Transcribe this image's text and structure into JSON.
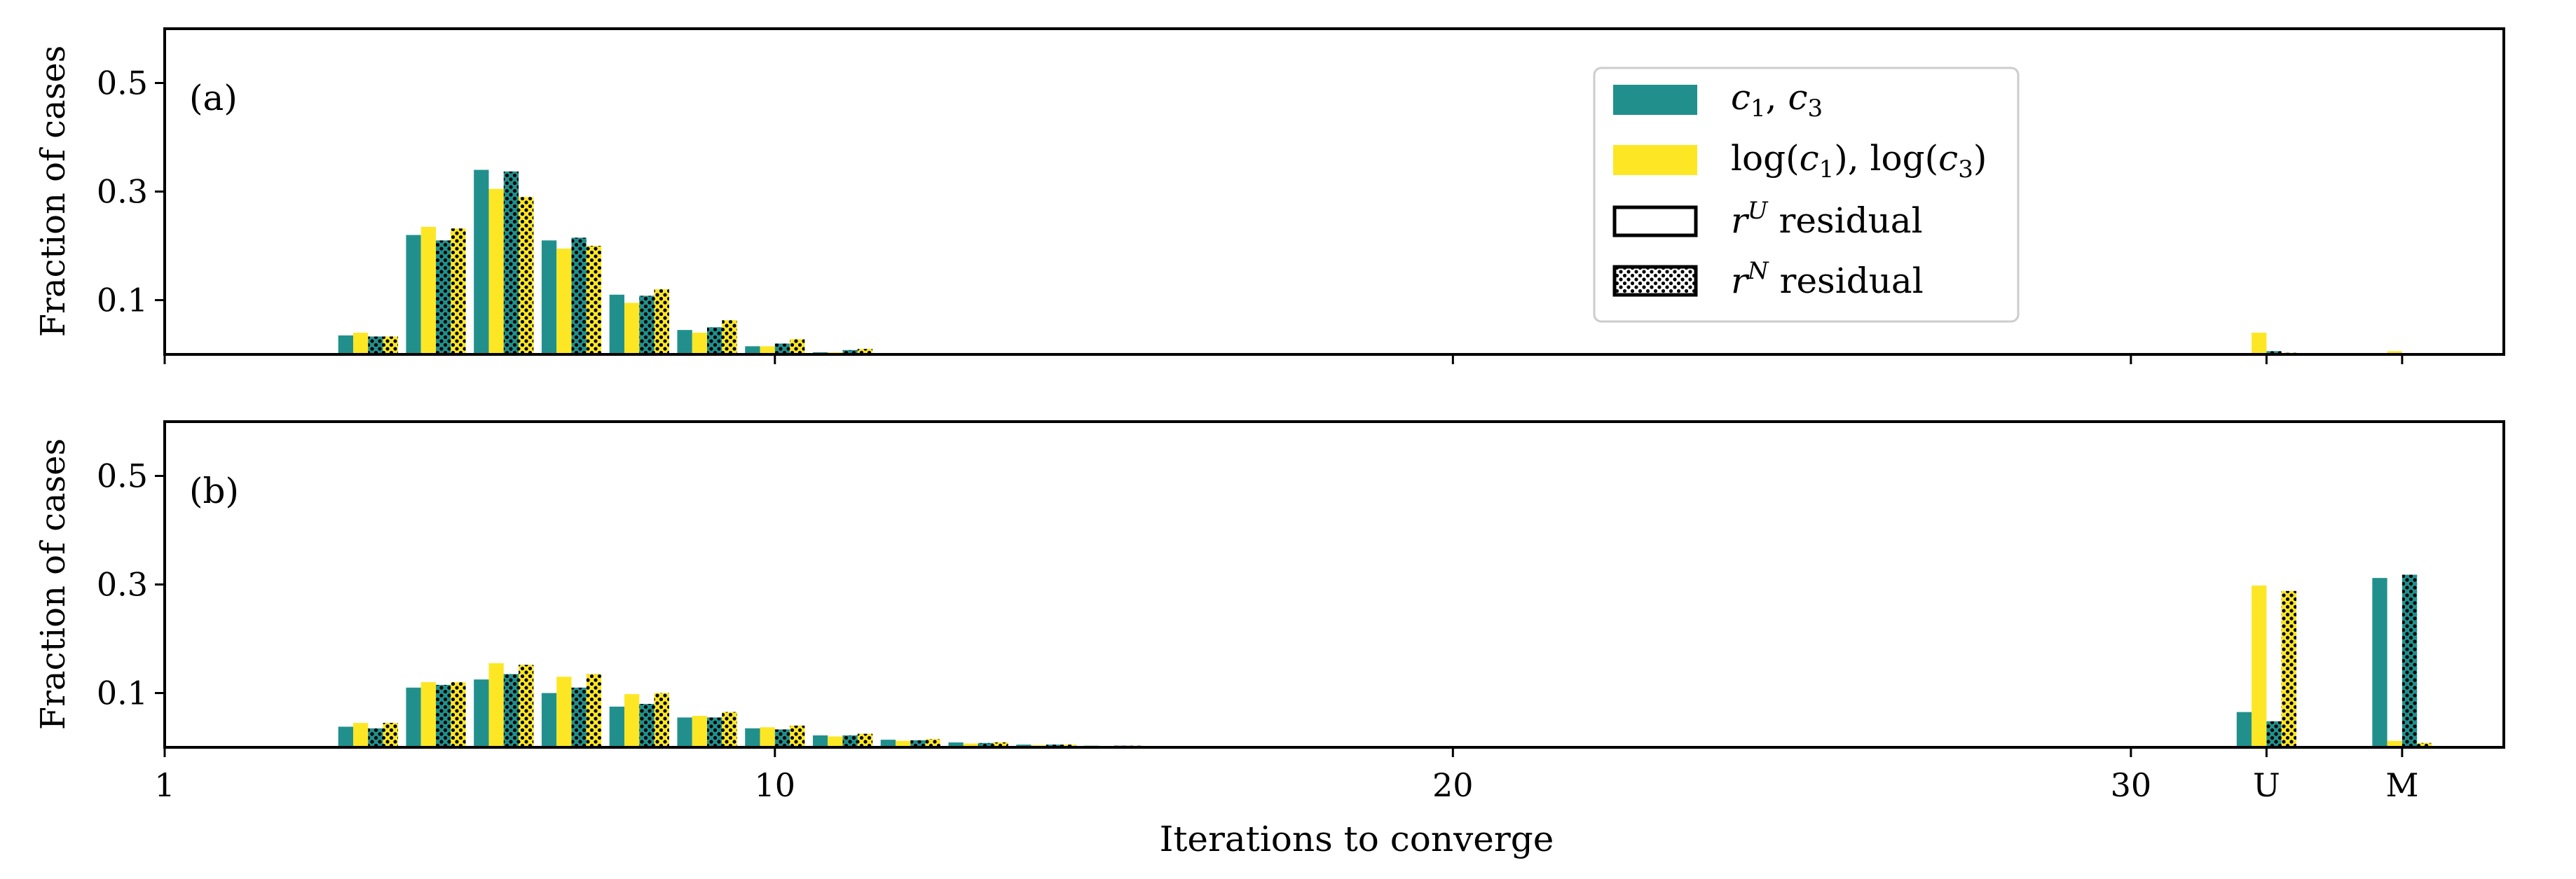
{
  "chart_data": {
    "type": "bar",
    "xlabel": "Iterations to converge",
    "ylabel": "Fraction of cases",
    "xticks": [
      {
        "pos": 1,
        "label": "1"
      },
      {
        "pos": 10,
        "label": "10"
      },
      {
        "pos": 20,
        "label": "20"
      },
      {
        "pos": 30,
        "label": "30"
      },
      {
        "pos": 32,
        "label": "U"
      },
      {
        "pos": 34,
        "label": "M"
      }
    ],
    "xminor_ticks": [
      1,
      10,
      20,
      30,
      32,
      34
    ],
    "xlim": [
      1,
      35.5
    ],
    "ylim": [
      0,
      0.6
    ],
    "yticks": [
      0.1,
      0.3,
      0.5
    ],
    "ytick_labels": [
      "0.1",
      "0.3",
      "0.5"
    ],
    "legend": {
      "placement": "upper center",
      "entries": [
        {
          "label": "c1, c3",
          "fill": "#21908d",
          "hatch": false,
          "display": "teal"
        },
        {
          "label": "log(c1), log(c3)",
          "fill": "#fde725",
          "hatch": false,
          "display": "yellow"
        },
        {
          "label": "r^U residual",
          "fill": "#ffffff",
          "hatch": false,
          "display": "outline"
        },
        {
          "label": "r^N residual",
          "fill": "#ffffff",
          "hatch": true,
          "display": "dots"
        }
      ]
    },
    "series_order": [
      "c1c3_rU",
      "logc_rU",
      "c1c3_rN",
      "logc_rN"
    ],
    "series_style": {
      "c1c3_rU": {
        "color": "#21908d",
        "hatch": false
      },
      "logc_rU": {
        "color": "#fde725",
        "hatch": false
      },
      "c1c3_rN": {
        "color": "#21908d",
        "hatch": true
      },
      "logc_rN": {
        "color": "#fde725",
        "hatch": true
      }
    },
    "panels": [
      {
        "label": "(a)",
        "x": [
          4,
          5,
          6,
          7,
          8,
          9,
          10,
          11,
          32,
          34
        ],
        "c1c3_rU": [
          0.035,
          0.22,
          0.34,
          0.21,
          0.11,
          0.045,
          0.015,
          0.004,
          0.0,
          0.0
        ],
        "logc_rU": [
          0.04,
          0.235,
          0.305,
          0.195,
          0.095,
          0.04,
          0.015,
          0.004,
          0.04,
          0.006
        ],
        "c1c3_rN": [
          0.033,
          0.21,
          0.337,
          0.215,
          0.108,
          0.05,
          0.02,
          0.008,
          0.006,
          0.002
        ],
        "logc_rN": [
          0.033,
          0.232,
          0.29,
          0.2,
          0.12,
          0.063,
          0.028,
          0.01,
          0.003,
          0.002
        ]
      },
      {
        "label": "(b)",
        "x": [
          4,
          5,
          6,
          7,
          8,
          9,
          10,
          11,
          12,
          13,
          14,
          15,
          16,
          32,
          34
        ],
        "c1c3_rU": [
          0.038,
          0.11,
          0.125,
          0.1,
          0.075,
          0.055,
          0.035,
          0.022,
          0.014,
          0.009,
          0.005,
          0.003,
          0.002,
          0.065,
          0.312
        ],
        "logc_rU": [
          0.045,
          0.12,
          0.155,
          0.13,
          0.098,
          0.058,
          0.037,
          0.02,
          0.012,
          0.007,
          0.004,
          0.002,
          0.001,
          0.298,
          0.012
        ],
        "c1c3_rN": [
          0.035,
          0.115,
          0.135,
          0.11,
          0.08,
          0.055,
          0.033,
          0.022,
          0.013,
          0.008,
          0.005,
          0.003,
          0.002,
          0.048,
          0.318
        ],
        "logc_rN": [
          0.045,
          0.12,
          0.152,
          0.135,
          0.1,
          0.065,
          0.04,
          0.025,
          0.015,
          0.009,
          0.005,
          0.003,
          0.001,
          0.288,
          0.008
        ]
      }
    ]
  }
}
